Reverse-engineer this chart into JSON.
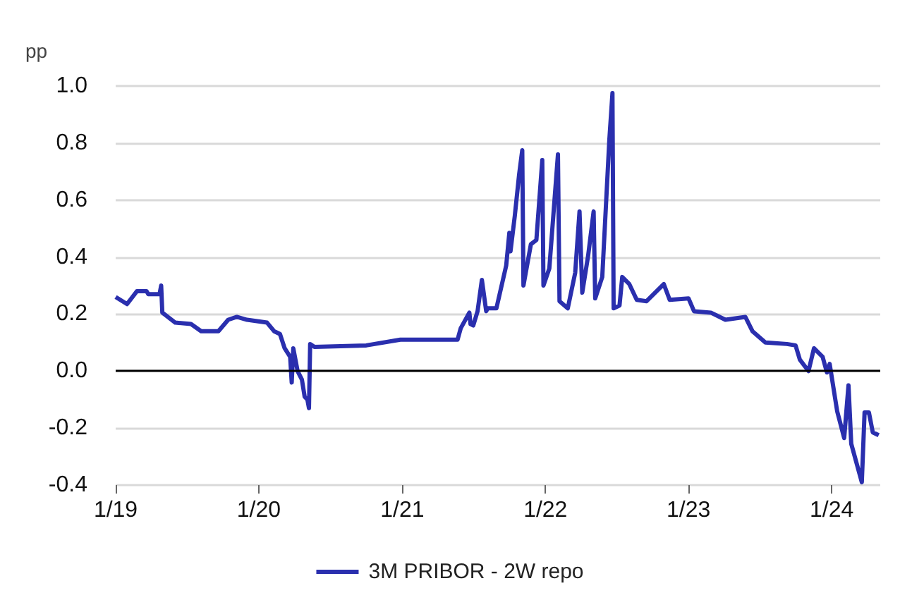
{
  "chart_data": {
    "type": "line",
    "ylabel": "pp",
    "xlim": [
      "2019-01-01",
      "2024-05-04"
    ],
    "xticks": [
      {
        "value": "2019-01-01",
        "label": "1/19"
      },
      {
        "value": "2020-01-01",
        "label": "1/20"
      },
      {
        "value": "2021-01-01",
        "label": "1/21"
      },
      {
        "value": "2022-01-01",
        "label": "1/22"
      },
      {
        "value": "2023-01-01",
        "label": "1/23"
      },
      {
        "value": "2024-01-01",
        "label": "1/24"
      }
    ],
    "ylim": [
      -0.4,
      1.0
    ],
    "yticks": [
      {
        "value": -0.4,
        "label": "-0.4"
      },
      {
        "value": -0.2,
        "label": "-0.2"
      },
      {
        "value": 0,
        "label": "0.0"
      },
      {
        "value": 0.2,
        "label": "0.2"
      },
      {
        "value": 0.4,
        "label": "0.4"
      },
      {
        "value": 0.6,
        "label": "0.6"
      },
      {
        "value": 0.8,
        "label": "0.8"
      },
      {
        "value": 1.0,
        "label": "1.0"
      }
    ],
    "grid": "y",
    "legend": "bottom",
    "ref_lines": [
      {
        "axis": "y",
        "value": 0,
        "color": "#000000"
      }
    ],
    "series": [
      {
        "name": "3M PRIBOR - 2W repo",
        "color": "#2a2fae",
        "x": [
          "2019-01-01",
          "2019-01-30",
          "2019-02-24",
          "2019-03-21",
          "2019-03-25",
          "2019-04-23",
          "2019-04-27",
          "2019-04-30",
          "2019-06-02",
          "2019-07-12",
          "2019-08-07",
          "2019-09-20",
          "2019-10-15",
          "2019-11-06",
          "2019-12-02",
          "2020-01-22",
          "2020-02-09",
          "2020-02-24",
          "2020-03-07",
          "2020-03-21",
          "2020-03-25",
          "2020-03-29",
          "2020-04-09",
          "2020-04-20",
          "2020-04-27",
          "2020-05-04",
          "2020-05-08",
          "2020-05-11",
          "2020-05-22",
          "2020-10-01",
          "2020-12-27",
          "2021-05-22",
          "2021-05-30",
          "2021-06-21",
          "2021-06-24",
          "2021-07-01",
          "2021-07-12",
          "2021-07-23",
          "2021-08-03",
          "2021-08-07",
          "2021-08-29",
          "2021-09-23",
          "2021-10-01",
          "2021-10-04",
          "2021-10-15",
          "2021-10-26",
          "2021-11-03",
          "2021-11-06",
          "2021-11-25",
          "2021-12-09",
          "2021-12-24",
          "2021-12-27",
          "2022-01-11",
          "2022-02-02",
          "2022-02-06",
          "2022-02-27",
          "2022-03-18",
          "2022-03-29",
          "2022-04-05",
          "2022-04-20",
          "2022-05-04",
          "2022-05-08",
          "2022-05-26",
          "2022-06-13",
          "2022-06-21",
          "2022-06-24",
          "2022-07-09",
          "2022-07-16",
          "2022-08-03",
          "2022-08-22",
          "2022-09-16",
          "2022-10-30",
          "2022-11-14",
          "2023-01-01",
          "2023-01-15",
          "2023-02-27",
          "2023-04-05",
          "2023-05-26",
          "2023-06-13",
          "2023-07-16",
          "2023-09-09",
          "2023-10-01",
          "2023-10-12",
          "2023-11-03",
          "2023-11-17",
          "2023-12-09",
          "2023-12-20",
          "2023-12-27",
          "2024-01-15",
          "2024-02-02",
          "2024-02-13",
          "2024-02-20",
          "2024-03-18",
          "2024-03-25",
          "2024-04-05",
          "2024-04-15",
          "2024-04-30"
        ],
        "values": [
          0.26,
          0.235,
          0.28,
          0.28,
          0.27,
          0.27,
          0.3,
          0.205,
          0.17,
          0.165,
          0.14,
          0.14,
          0.18,
          0.19,
          0.18,
          0.17,
          0.14,
          0.13,
          0.08,
          0.05,
          -0.04,
          0.08,
          0.0,
          -0.03,
          -0.09,
          -0.1,
          -0.13,
          0.095,
          0.085,
          0.09,
          0.11,
          0.11,
          0.15,
          0.205,
          0.165,
          0.16,
          0.21,
          0.32,
          0.21,
          0.22,
          0.22,
          0.37,
          0.485,
          0.42,
          0.545,
          0.69,
          0.775,
          0.3,
          0.445,
          0.46,
          0.74,
          0.3,
          0.36,
          0.76,
          0.245,
          0.22,
          0.345,
          0.56,
          0.275,
          0.405,
          0.56,
          0.255,
          0.33,
          0.81,
          0.975,
          0.22,
          0.23,
          0.33,
          0.305,
          0.25,
          0.245,
          0.305,
          0.25,
          0.255,
          0.21,
          0.205,
          0.18,
          0.19,
          0.14,
          0.1,
          0.095,
          0.09,
          0.04,
          0.0,
          0.08,
          0.05,
          -0.005,
          0.025,
          -0.14,
          -0.235,
          -0.05,
          -0.255,
          -0.39,
          -0.145,
          -0.145,
          -0.215,
          -0.225
        ]
      }
    ]
  }
}
